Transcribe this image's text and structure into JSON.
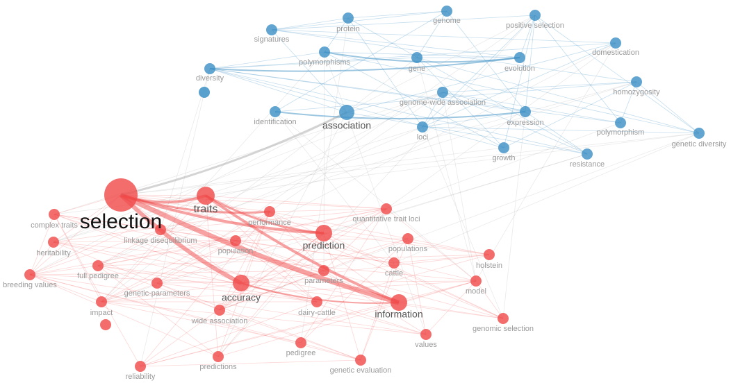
{
  "nodes": [
    {
      "label": "protein",
      "color": "#3b8fc4"
    },
    {
      "label": "genome",
      "color": "#3b8fc4"
    },
    {
      "label": "positive selection",
      "color": "#3b8fc4"
    },
    {
      "label": "signatures",
      "color": "#3b8fc4"
    },
    {
      "label": "polymorphisms",
      "color": "#3b8fc4"
    },
    {
      "label": "gene",
      "color": "#3b8fc4"
    },
    {
      "label": "evolution",
      "color": "#3b8fc4"
    },
    {
      "label": "domestication",
      "color": "#3b8fc4"
    },
    {
      "label": "diversity",
      "color": "#3b8fc4"
    },
    {
      "label": "homozygosity",
      "color": "#3b8fc4"
    },
    {
      "label": "genome-wide association",
      "color": "#3b8fc4"
    },
    {
      "label": "identification",
      "color": "#3b8fc4"
    },
    {
      "label": "association",
      "color": "#3b8fc4"
    },
    {
      "label": "expression",
      "color": "#3b8fc4"
    },
    {
      "label": "loci",
      "color": "#3b8fc4"
    },
    {
      "label": "polymorphism",
      "color": "#3b8fc4"
    },
    {
      "label": "genetic diversity",
      "color": "#3b8fc4"
    },
    {
      "label": "growth",
      "color": "#3b8fc4"
    },
    {
      "label": "resistance",
      "color": "#3b8fc4"
    },
    {
      "label": "selection",
      "color": "#f04848"
    },
    {
      "label": "traits",
      "color": "#f04848"
    },
    {
      "label": "complex traits",
      "color": "#f04848"
    },
    {
      "label": "performance",
      "color": "#f04848"
    },
    {
      "label": "quantitative trait loci",
      "color": "#f04848"
    },
    {
      "label": "linkage disequilibrium",
      "color": "#f04848"
    },
    {
      "label": "heritability",
      "color": "#f04848"
    },
    {
      "label": "population",
      "color": "#f04848"
    },
    {
      "label": "prediction",
      "color": "#f04848"
    },
    {
      "label": "populations",
      "color": "#f04848"
    },
    {
      "label": "holstein",
      "color": "#f04848"
    },
    {
      "label": "breeding values",
      "color": "#f04848"
    },
    {
      "label": "full pedigree",
      "color": "#f04848"
    },
    {
      "label": "parameters",
      "color": "#f04848"
    },
    {
      "label": "cattle",
      "color": "#f04848"
    },
    {
      "label": "genetic-parameters",
      "color": "#f04848"
    },
    {
      "label": "accuracy",
      "color": "#f04848"
    },
    {
      "label": "model",
      "color": "#f04848"
    },
    {
      "label": "impact",
      "color": "#f04848"
    },
    {
      "label": "dairy-cattle",
      "color": "#f04848"
    },
    {
      "label": "information",
      "color": "#f04848"
    },
    {
      "label": "wide association",
      "color": "#f04848"
    },
    {
      "label": "genomic selection",
      "color": "#f04848"
    },
    {
      "label": "values",
      "color": "#f04848"
    },
    {
      "label": "pedigree",
      "color": "#f04848"
    },
    {
      "label": "predictions",
      "color": "#f04848"
    },
    {
      "label": "genetic evaluation",
      "color": "#f04848"
    },
    {
      "label": "reliability",
      "color": "#f04848"
    }
  ]
}
